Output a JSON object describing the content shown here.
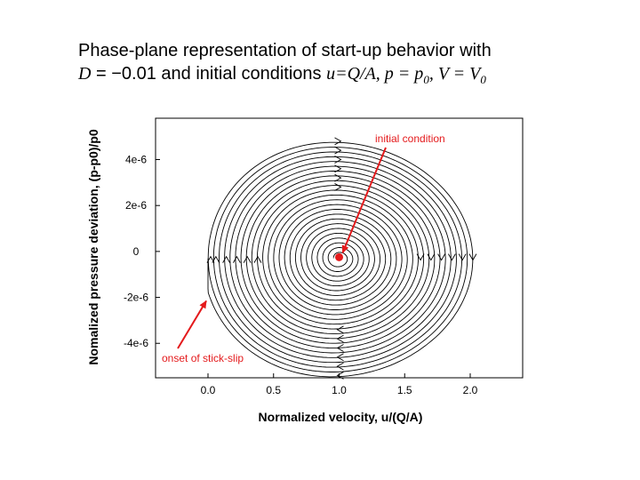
{
  "slide": {
    "title_line1": "Phase-plane representation of start-up behavior with",
    "title_D": "D",
    "title_D_value": " = −0.01 and initial conditions ",
    "title_u": "u",
    "title_QA": "=Q/A, p = p",
    "title_sub0": "0",
    "title_V": ", V = V",
    "title_sub0b": "0"
  },
  "chart_data": {
    "type": "line",
    "xlabel": "Normalized velocity, u/(Q/A)",
    "ylabel": "Nomalized pressure deviation, (p-p0)/p0",
    "xlim": [
      -0.4,
      2.4
    ],
    "ylim": [
      -5.5e-06,
      5.8e-06
    ],
    "x_ticks": [
      0.0,
      0.5,
      1.0,
      1.5,
      2.0
    ],
    "x_tick_labels": [
      "0.0",
      "0.5",
      "1.0",
      "1.5",
      "2.0"
    ],
    "y_ticks": [
      4e-06,
      2e-06,
      0,
      -2e-06,
      -4e-06
    ],
    "y_tick_labels": [
      "4e-6",
      "2e-6",
      "0",
      "-2e-6",
      "-4e-6"
    ],
    "series": [
      {
        "center": [
          1.0,
          -3e-07
        ],
        "max_amplitude_u": 1.04,
        "max_amplitude_p": 5.2e-06,
        "turns": 24,
        "stick_slip_u": 0.0
      }
    ],
    "annotations": [
      {
        "text": "initial condition",
        "point": [
          1.0,
          -2.5e-07
        ],
        "color": "#e41a1c"
      },
      {
        "text": "onset of stick-slip",
        "point": [
          0.0,
          -2e-06
        ],
        "color": "#e41a1c"
      }
    ],
    "initial_point": [
      1.0,
      -2.5e-07
    ],
    "grid": false
  }
}
